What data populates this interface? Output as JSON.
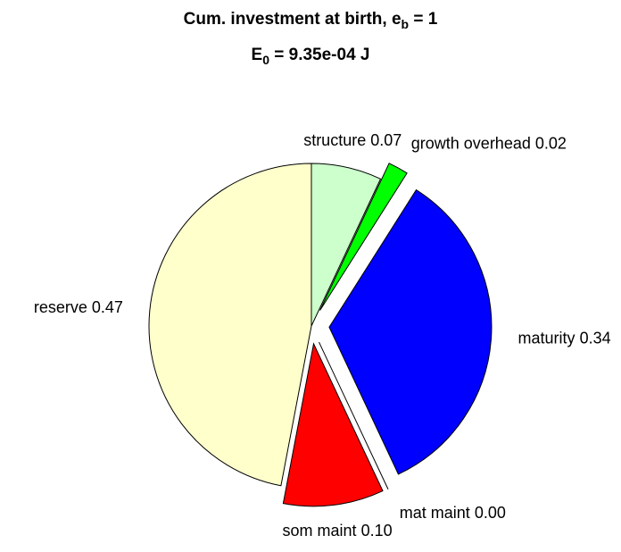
{
  "chart_data": {
    "type": "pie",
    "title": "Cum. investment at birth, e_b = 1",
    "subtitle": "E_0 = 9.35e-04 J",
    "categories": [
      "structure",
      "growth overhead",
      "maturity",
      "mat maint",
      "som maint",
      "reserve"
    ],
    "values": [
      0.07,
      0.02,
      0.34,
      0.0,
      0.1,
      0.47
    ],
    "value_labels": [
      "0.07",
      "0.02",
      "0.34",
      "0.00",
      "0.10",
      "0.47"
    ],
    "colors": [
      "#ccffcc",
      "#00ff00",
      "#0000ff",
      "#ffff00",
      "#ff0000",
      "#ffffcc"
    ],
    "explode": [
      false,
      true,
      true,
      true,
      true,
      false
    ]
  }
}
